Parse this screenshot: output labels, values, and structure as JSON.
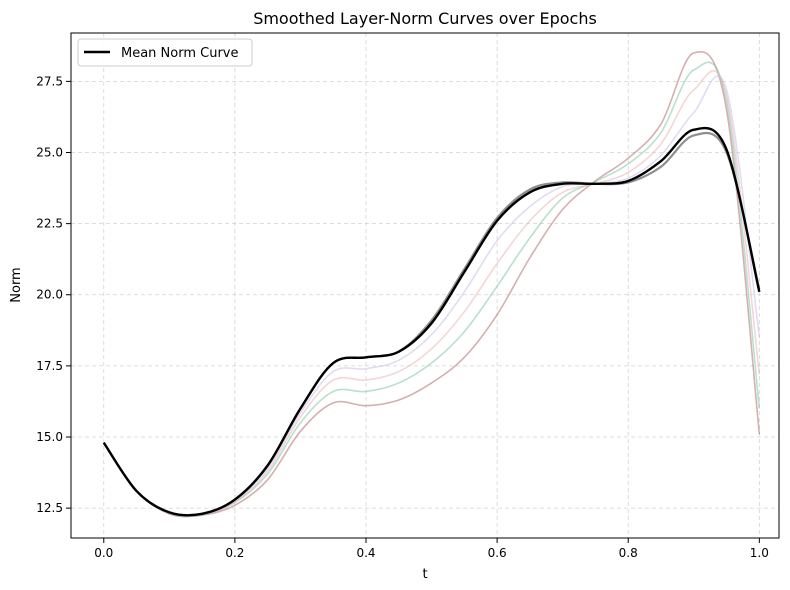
{
  "chart_data": {
    "type": "line",
    "title": "Smoothed Layer-Norm Curves over Epochs",
    "xlabel": "t",
    "ylabel": "Norm",
    "xlim": [
      -0.05,
      1.03
    ],
    "ylim": [
      11.45,
      29.2
    ],
    "xticks": [
      0.0,
      0.2,
      0.4,
      0.6,
      0.8,
      1.0
    ],
    "xtick_labels": [
      "0.0",
      "0.2",
      "0.4",
      "0.6",
      "0.8",
      "1.0"
    ],
    "yticks": [
      12.5,
      15.0,
      17.5,
      20.0,
      22.5,
      25.0,
      27.5
    ],
    "ytick_labels": [
      "12.5",
      "15.0",
      "17.5",
      "20.0",
      "22.5",
      "25.0",
      "27.5"
    ],
    "grid": true,
    "legend_position": "top-left",
    "x": [
      0.0,
      0.05,
      0.1,
      0.15,
      0.2,
      0.25,
      0.3,
      0.35,
      0.4,
      0.45,
      0.5,
      0.55,
      0.6,
      0.65,
      0.7,
      0.75,
      0.8,
      0.85,
      0.9,
      0.95,
      1.0
    ],
    "series": [
      {
        "name": "Mean Norm Curve",
        "color": "#000000",
        "values": [
          14.8,
          13.1,
          12.35,
          12.3,
          12.8,
          14.0,
          16.0,
          17.6,
          17.8,
          18.0,
          19.0,
          20.8,
          22.6,
          23.6,
          23.9,
          23.9,
          24.0,
          24.7,
          25.8,
          25.1,
          20.1
        ]
      },
      {
        "name": "",
        "color": "#b07070",
        "values": [
          14.8,
          13.1,
          12.3,
          12.25,
          12.6,
          13.5,
          15.2,
          16.2,
          16.1,
          16.3,
          16.9,
          17.8,
          19.3,
          21.3,
          23.0,
          24.0,
          24.8,
          26.0,
          28.5,
          26.5,
          15.1
        ]
      },
      {
        "name": "",
        "color": "#7fc7a6",
        "values": [
          14.8,
          13.1,
          12.32,
          12.27,
          12.7,
          13.7,
          15.5,
          16.6,
          16.6,
          16.9,
          17.6,
          18.7,
          20.3,
          22.0,
          23.4,
          23.98,
          24.6,
          25.7,
          27.9,
          26.8,
          16.0
        ]
      },
      {
        "name": "",
        "color": "#e8b4b8",
        "values": [
          14.8,
          13.1,
          12.33,
          12.28,
          12.72,
          13.8,
          15.7,
          17.0,
          17.0,
          17.3,
          18.1,
          19.4,
          21.1,
          22.6,
          23.6,
          23.9,
          24.3,
          25.3,
          27.2,
          27.0,
          17.2
        ]
      },
      {
        "name": "",
        "color": "#c9c0e6",
        "values": [
          14.8,
          13.1,
          12.34,
          12.29,
          12.76,
          13.9,
          15.85,
          17.3,
          17.4,
          17.7,
          18.6,
          20.1,
          21.9,
          23.1,
          23.8,
          23.9,
          24.1,
          24.9,
          26.4,
          27.2,
          18.5
        ]
      },
      {
        "name": "",
        "color": "#7a7a7a",
        "values": [
          14.8,
          13.1,
          12.35,
          12.3,
          12.8,
          14.0,
          16.0,
          17.6,
          17.8,
          18.0,
          19.1,
          20.9,
          22.7,
          23.7,
          23.95,
          23.9,
          23.95,
          24.5,
          25.6,
          25.0,
          20.2
        ]
      }
    ]
  }
}
